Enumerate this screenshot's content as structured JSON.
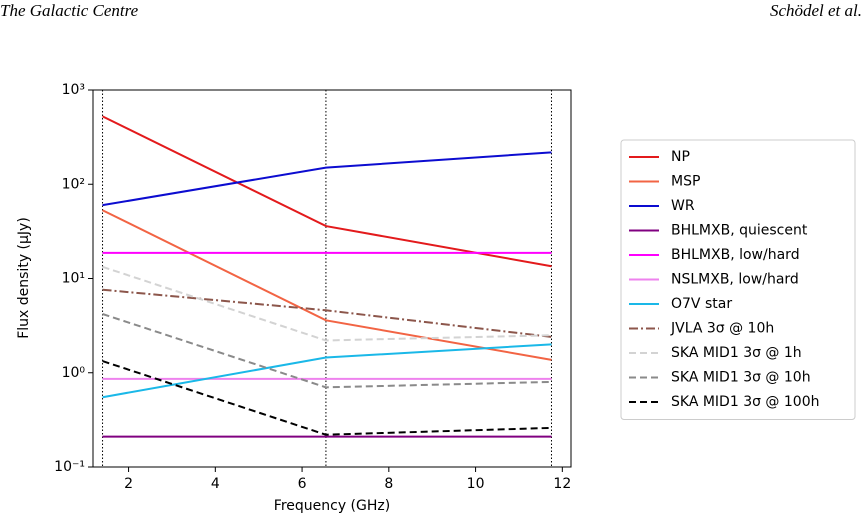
{
  "header": {
    "title": "The Galactic Centre",
    "authors": "Schödel et al."
  },
  "chart_data": {
    "type": "line",
    "x_label": "Frequency (GHz)",
    "y_label": "Flux density (μJy)",
    "x": [
      1.4,
      6.55,
      11.75
    ],
    "xlim": [
      1.18,
      12.2
    ],
    "xticks": [
      2,
      4,
      6,
      8,
      10,
      12
    ],
    "ylim": [
      0.1,
      1000
    ],
    "log_y": true,
    "yticks": [
      {
        "value": 0.1,
        "label": "10⁻¹"
      },
      {
        "value": 1,
        "label": "10⁰"
      },
      {
        "value": 10,
        "label": "10¹"
      },
      {
        "value": 100,
        "label": "10²"
      },
      {
        "value": 1000,
        "label": "10³"
      }
    ],
    "vlines": true,
    "legend": "outside right",
    "series": [
      {
        "name": "NP",
        "color": "#e31a1c",
        "linestyle": "solid",
        "values": [
          525,
          36,
          13.5
        ]
      },
      {
        "name": "MSP",
        "color": "#f26444",
        "linestyle": "solid",
        "values": [
          53,
          3.6,
          1.37
        ]
      },
      {
        "name": "WR",
        "color": "#0c0cd0",
        "linestyle": "solid",
        "values": [
          60,
          150,
          218
        ]
      },
      {
        "name": "BHLMXB, quiescent",
        "color": "#800080",
        "linestyle": "solid",
        "values": [
          0.21,
          0.21,
          0.21
        ]
      },
      {
        "name": "BHLMXB, low/hard",
        "color": "#ff00ff",
        "linestyle": "solid",
        "values": [
          18.7,
          18.7,
          18.7
        ]
      },
      {
        "name": "NSLMXB, low/hard",
        "color": "#ee82ee",
        "linestyle": "solid",
        "values": [
          0.86,
          0.86,
          0.86
        ]
      },
      {
        "name": "O7V star",
        "color": "#1ab8e8",
        "linestyle": "solid",
        "values": [
          0.55,
          1.45,
          2.0
        ]
      },
      {
        "name": "JVLA 3σ @ 10h",
        "color": "#8c564b",
        "linestyle": "dashdot",
        "values": [
          7.6,
          4.6,
          2.4
        ]
      },
      {
        "name": "SKA MID1 3σ @ 1h",
        "color": "#d3d3d3",
        "linestyle": "dashed",
        "values": [
          13.3,
          2.2,
          2.5
        ]
      },
      {
        "name": "SKA MID1 3σ @ 10h",
        "color": "#8a8a8a",
        "linestyle": "dashed",
        "values": [
          4.2,
          0.7,
          0.8
        ]
      },
      {
        "name": "SKA MID1 3σ @ 100h",
        "color": "#000000",
        "linestyle": "dashed",
        "values": [
          1.33,
          0.22,
          0.26
        ]
      }
    ]
  }
}
